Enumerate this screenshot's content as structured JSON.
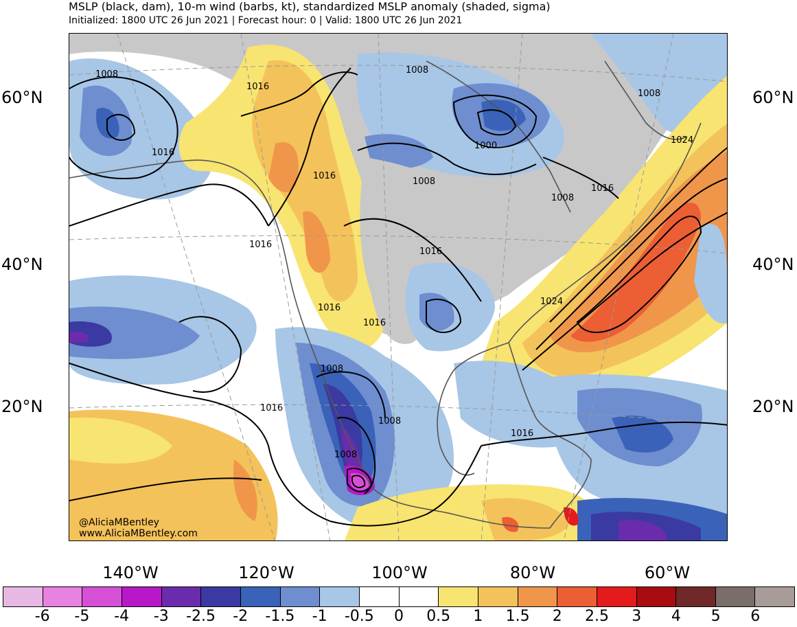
{
  "header": {
    "title": "MSLP (black, dam), 10-m wind (barbs, kt), standardized MSLP anomaly (shaded, sigma)",
    "subtitle": "Initialized: 1800 UTC 26 Jun 2021 | Forecast hour: 0 | Valid: 1800 UTC 26 Jun 2021"
  },
  "axes": {
    "lat_left": [
      "60°N",
      "40°N",
      "20°N"
    ],
    "lat_right": [
      "60°N",
      "40°N",
      "20°N"
    ],
    "lon": [
      "140°W",
      "120°W",
      "100°W",
      "80°W",
      "60°W"
    ]
  },
  "isobar_labels": [
    "1008",
    "1016",
    "1008",
    "1000",
    "1008",
    "1008",
    "1016",
    "1016",
    "1016",
    "1008",
    "1016",
    "1016",
    "1024",
    "1024",
    "1016",
    "1016",
    "1008",
    "1008",
    "1008",
    "1016",
    "1016"
  ],
  "credit": {
    "handle": "@AliciaMBentley",
    "site": "www.AliciaMBentley.com"
  },
  "colorbar": {
    "colors": [
      "#e8b8e4",
      "#e882e0",
      "#d650d6",
      "#b818c8",
      "#6a2cac",
      "#3a3aa2",
      "#3a62b8",
      "#6e8ed0",
      "#a8c6e6",
      "#ffffff",
      "#ffffff",
      "#f8e470",
      "#f4c25a",
      "#f0964a",
      "#ec5e34",
      "#e41a1c",
      "#a80c10",
      "#702828",
      "#7a6e6a",
      "#a89c98"
    ],
    "labels": [
      "-6",
      "-5",
      "-4",
      "-3",
      "-2.5",
      "-2",
      "-1.5",
      "-1",
      "-0.5",
      "0",
      "0.5",
      "1",
      "1.5",
      "2",
      "2.5",
      "3",
      "4",
      "5",
      "6"
    ]
  },
  "colors": {
    "land_gray": "#c8c8c8",
    "isobar": "#000000",
    "coastline": "#555555"
  }
}
